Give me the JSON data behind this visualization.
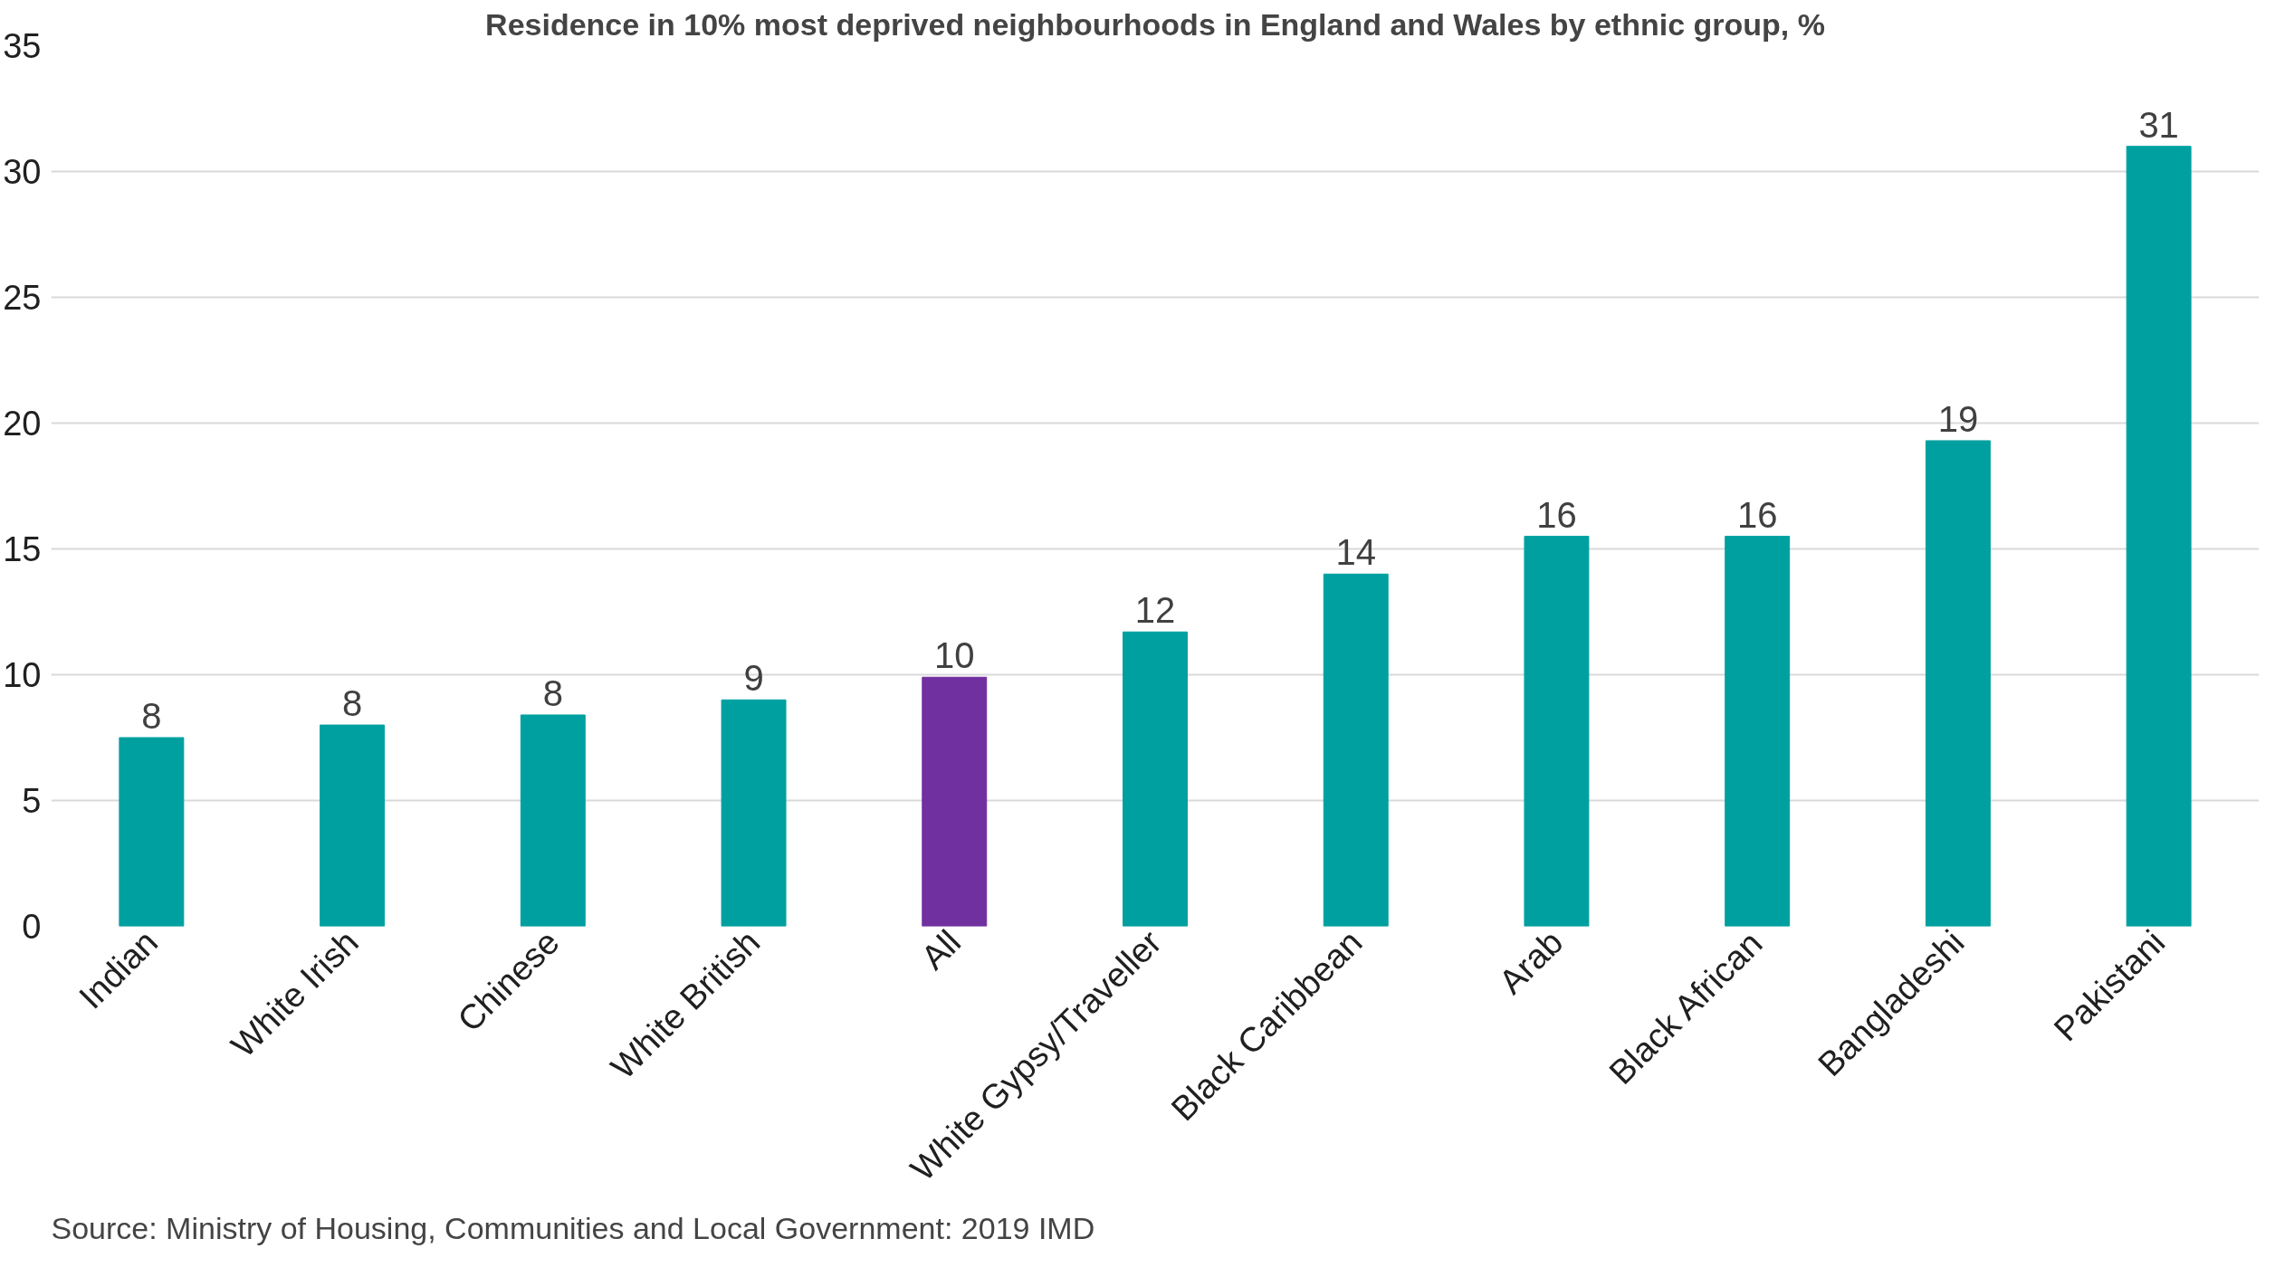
{
  "chart_data": {
    "type": "bar",
    "title": "Residence in 10% most deprived neighbourhoods in England and Wales by ethnic group, %",
    "categories": [
      "Indian",
      "White Irish",
      "Chinese",
      "White British",
      "All",
      "White Gypsy/Traveller",
      "Black Caribbean",
      "Arab",
      "Black African",
      "Bangladeshi",
      "Pakistani"
    ],
    "values": [
      7.5,
      8.0,
      8.4,
      9.0,
      9.9,
      11.7,
      14.0,
      15.5,
      15.5,
      19.3,
      31.0
    ],
    "colors": [
      "#00a0a0",
      "#00a0a0",
      "#00a0a0",
      "#00a0a0",
      "#7030a0",
      "#00a0a0",
      "#00a0a0",
      "#00a0a0",
      "#00a0a0",
      "#00a0a0",
      "#00a0a0"
    ],
    "value_labels": [
      "8",
      "8",
      "8",
      "9",
      "10",
      "12",
      "14",
      "16",
      "16",
      "19",
      "31"
    ],
    "ylim": [
      0,
      35
    ],
    "yticks": [
      0,
      5,
      10,
      15,
      20,
      25,
      30,
      35
    ],
    "grid": "y",
    "annotations": [
      "Source: Ministry of Housing, Communities and Local Government: 2019 IMD"
    ]
  }
}
